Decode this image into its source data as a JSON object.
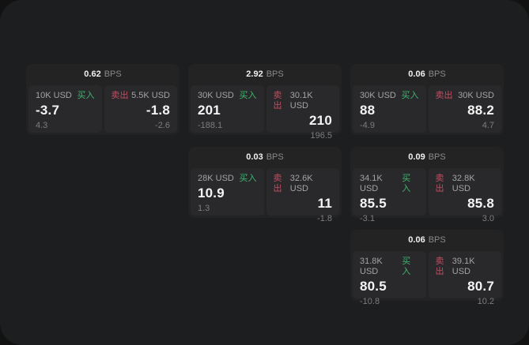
{
  "labels": {
    "bps": "BPS",
    "buy": "买入",
    "sell": "卖出"
  },
  "colors": {
    "background": "#121212",
    "panel": "#1d1e1f",
    "card": "#232324",
    "tile": "#29292b",
    "buy_green": "#3cb56f",
    "sell_red": "#c24d61"
  },
  "cards": [
    {
      "bps": "0.62",
      "buy": {
        "size": "10K USD",
        "price": "-3.7",
        "change": "4.3"
      },
      "sell": {
        "size": "5.5K USD",
        "price": "-1.8",
        "change": "-2.6"
      }
    },
    {
      "bps": "2.92",
      "buy": {
        "size": "30K USD",
        "price": "201",
        "change": "-188.1"
      },
      "sell": {
        "size": "30.1K USD",
        "price": "210",
        "change": "196.5"
      }
    },
    {
      "bps": "0.06",
      "buy": {
        "size": "30K USD",
        "price": "88",
        "change": "-4.9"
      },
      "sell": {
        "size": "30K USD",
        "price": "88.2",
        "change": "4.7"
      }
    },
    {
      "bps": "0.03",
      "buy": {
        "size": "28K USD",
        "price": "10.9",
        "change": "1.3"
      },
      "sell": {
        "size": "32.6K USD",
        "price": "11",
        "change": "-1.8"
      }
    },
    {
      "bps": "0.09",
      "buy": {
        "size": "34.1K USD",
        "price": "85.5",
        "change": "-3.1"
      },
      "sell": {
        "size": "32.8K USD",
        "price": "85.8",
        "change": "3.0"
      }
    },
    {
      "bps": "0.06",
      "buy": {
        "size": "31.8K USD",
        "price": "80.5",
        "change": "-10.8"
      },
      "sell": {
        "size": "39.1K USD",
        "price": "80.7",
        "change": "10.2"
      }
    }
  ]
}
